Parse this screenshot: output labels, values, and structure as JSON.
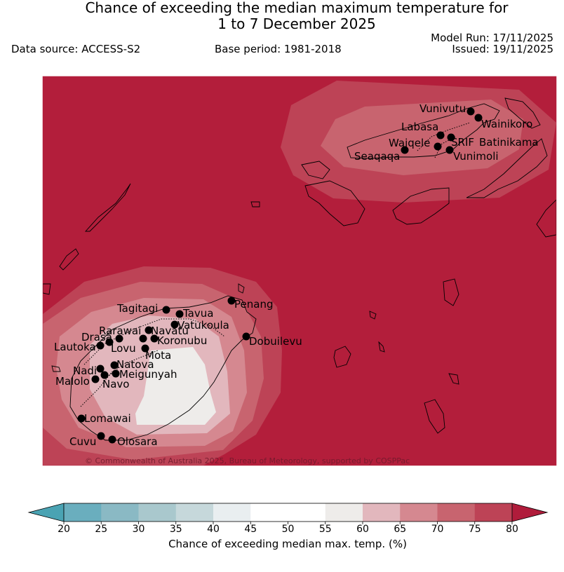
{
  "title_line1": "Chance of exceeding the median maximum temperature for",
  "title_line2": "1 to 7 December 2025",
  "data_source": "Data source: ACCESS-S2",
  "base_period": "Base period: 1981-2018",
  "model_run": "Model Run: 17/11/2025",
  "issued": "Issued: 19/11/2025",
  "copyright": "© Commonwealth of Australia 2025, Bureau of Meteorology, supported by COSPPac",
  "places": [
    "Vunivutu",
    "Wainikoro",
    "Labasa",
    "Waiqele",
    "SRIF",
    "Batinikama",
    "Seaqaqa",
    "Vunimoli",
    "Penang",
    "Tagitagi",
    "Tavua",
    "Vatukoula",
    "Rarawai",
    "Navatu",
    "Drasa",
    "Koronubu",
    "Lautoka",
    "Lovu",
    "Mota",
    "Nadi",
    "Natova",
    "Meigunyah",
    "Malolo",
    "Navo",
    "Dobuilevu",
    "Lomawai",
    "Cuvu",
    "Olosara"
  ],
  "colorbar": {
    "label": "Chance of exceeding median max. temp. (%)",
    "ticks": [
      "20",
      "25",
      "30",
      "35",
      "40",
      "45",
      "50",
      "55",
      "60",
      "65",
      "70",
      "75",
      "80"
    ],
    "colors": [
      "#6aaebe",
      "#8ab9c4",
      "#a9c8cd",
      "#c6d8db",
      "#e9eef0",
      "#ffffff",
      "#ffffff",
      "#eeecea",
      "#e2b7bd",
      "#d58890",
      "#c8646f",
      "#bd4356"
    ],
    "under_color": "#4aa3b3",
    "over_color": "#b01c3b"
  },
  "map_colors": {
    "background": "#b31e3b",
    "c70": "#bd4356",
    "c65": "#c8646f",
    "c60": "#d58890",
    "c55": "#e2b7bd",
    "c50": "#eeecea"
  }
}
